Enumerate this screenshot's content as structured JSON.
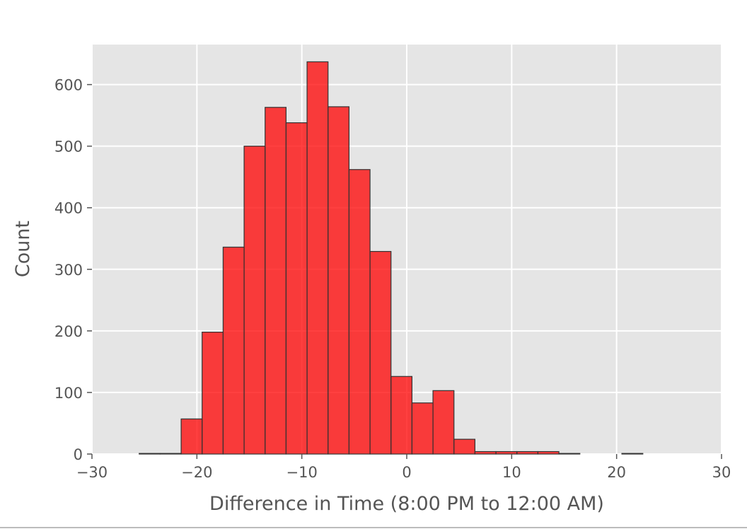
{
  "chart_data": {
    "type": "bar",
    "title": "",
    "xlabel": "Difference in Time (8:00 PM to 12:00 AM)",
    "ylabel": "Count",
    "xlim": [
      -30,
      30
    ],
    "ylim": [
      0,
      665
    ],
    "grid": true,
    "bar_color": "#ff0000",
    "bar_edge_color": "#333333",
    "background_color": "#e5e5e5",
    "x_ticks": [
      -30,
      -20,
      -10,
      0,
      10,
      20,
      30
    ],
    "x_tick_labels": [
      "−30",
      "−20",
      "−10",
      "0",
      "10",
      "20",
      "30"
    ],
    "y_ticks": [
      0,
      100,
      200,
      300,
      400,
      500,
      600
    ],
    "y_tick_labels": [
      "0",
      "100",
      "200",
      "300",
      "400",
      "500",
      "600"
    ],
    "bin_edges": [
      -25.5,
      -23.5,
      -21.5,
      -19.5,
      -17.5,
      -15.5,
      -13.5,
      -11.5,
      -9.5,
      -7.5,
      -5.5,
      -3.5,
      -1.5,
      0.5,
      2.5,
      4.5,
      6.5,
      8.5,
      10.5,
      12.5,
      14.5,
      16.5,
      18.5,
      20.5,
      22.5
    ],
    "values": [
      1,
      1,
      57,
      198,
      336,
      500,
      563,
      538,
      637,
      564,
      462,
      329,
      126,
      83,
      103,
      24,
      4,
      4,
      4,
      4,
      1,
      0,
      0,
      1
    ]
  }
}
